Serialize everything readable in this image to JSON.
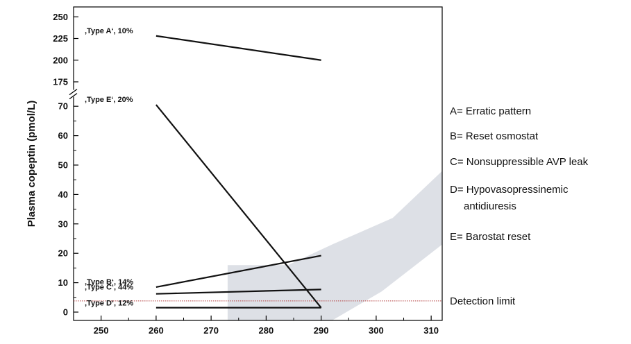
{
  "chart_data": {
    "type": "line",
    "title": "",
    "xlabel": "",
    "ylabel": "Plasma copeptin (pmol/L)",
    "xlim": [
      245,
      312
    ],
    "x_ticks": [
      250,
      260,
      270,
      280,
      290,
      300,
      310
    ],
    "y_ticks_lower": [
      0,
      10,
      20,
      30,
      40,
      50,
      60,
      70
    ],
    "y_ticks_upper": [
      175,
      200,
      225,
      250
    ],
    "y_axis_break": {
      "from": 70,
      "to": 175
    },
    "grid": false,
    "legend_position": "right",
    "series": [
      {
        "name": ",Type A‘, 10%",
        "x": [
          260,
          290
        ],
        "y": [
          228,
          200
        ]
      },
      {
        "name": ",Type E‘, 20%",
        "x": [
          260,
          290
        ],
        "y": [
          70.5,
          1.5
        ]
      },
      {
        "name": ",Type B‘, 14%",
        "x": [
          260,
          290
        ],
        "y": [
          8.5,
          19.2
        ]
      },
      {
        "name": ",Type C‘, 44%",
        "x": [
          260,
          290
        ],
        "y": [
          6.2,
          7.7
        ]
      },
      {
        "name": ",Type D‘, 12%",
        "x": [
          260,
          290
        ],
        "y": [
          1.5,
          1.5
        ]
      }
    ],
    "normal_range": {
      "color": "#dde0e6",
      "points": [
        [
          273,
          16
        ],
        [
          284,
          16
        ],
        [
          292,
          23
        ],
        [
          303,
          32
        ],
        [
          312,
          48
        ],
        [
          312,
          23
        ],
        [
          301,
          7
        ],
        [
          292,
          -3
        ],
        [
          273,
          -3
        ]
      ]
    },
    "detection_limit": {
      "label": "Detection limit",
      "y": 3.8,
      "color": "#b33a3a"
    },
    "legend": [
      {
        "key": "A",
        "text": "A= Erratic pattern"
      },
      {
        "key": "B",
        "text": "B= Reset osmostat"
      },
      {
        "key": "C",
        "text": "C= Nonsuppressible AVP leak"
      },
      {
        "key": "D",
        "text": "D= Hypovasopressinemic",
        "text_cont": "antidiuresis"
      },
      {
        "key": "E",
        "text": "E= Barostat reset"
      }
    ]
  }
}
